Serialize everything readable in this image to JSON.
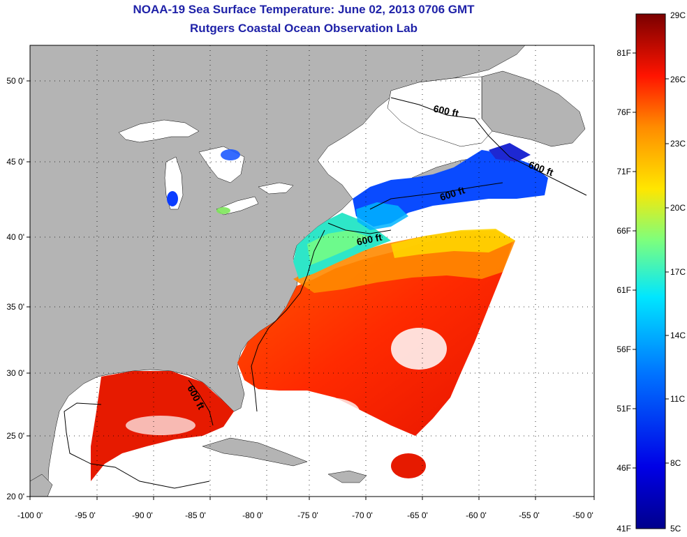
{
  "title": "NOAA-19 Sea Surface Temperature:  June 02, 2013 0706 GMT",
  "subtitle": "Rutgers Coastal Ocean Observation Lab",
  "map": {
    "lon_ticks": [
      "-100 0'",
      "-95 0'",
      "-90 0'",
      "-85 0'",
      "-80 0'",
      "-75 0'",
      "-70 0'",
      "-65 0'",
      "-60 0'",
      "-55 0'",
      "-50 0'"
    ],
    "lat_ticks": [
      "50 0'",
      "45 0'",
      "40 0'",
      "35 0'",
      "30 0'",
      "25 0'",
      "20 0'"
    ],
    "contour_label": "600 ft",
    "land_color": "#b4b4b4",
    "ocean_nodata_color": "#ffffff"
  },
  "colorbar": {
    "celsius_labels": [
      "29C",
      "26C",
      "23C",
      "20C",
      "17C",
      "14C",
      "11C",
      "8C",
      "5C"
    ],
    "fahrenheit_labels": [
      "81F",
      "76F",
      "71F",
      "66F",
      "61F",
      "56F",
      "51F",
      "46F",
      "41F"
    ],
    "colors": [
      "#7a0000",
      "#ff1400",
      "#ff8c00",
      "#ffe600",
      "#7dff7d",
      "#00e6ff",
      "#0073ff",
      "#0000e6",
      "#00008c"
    ]
  }
}
